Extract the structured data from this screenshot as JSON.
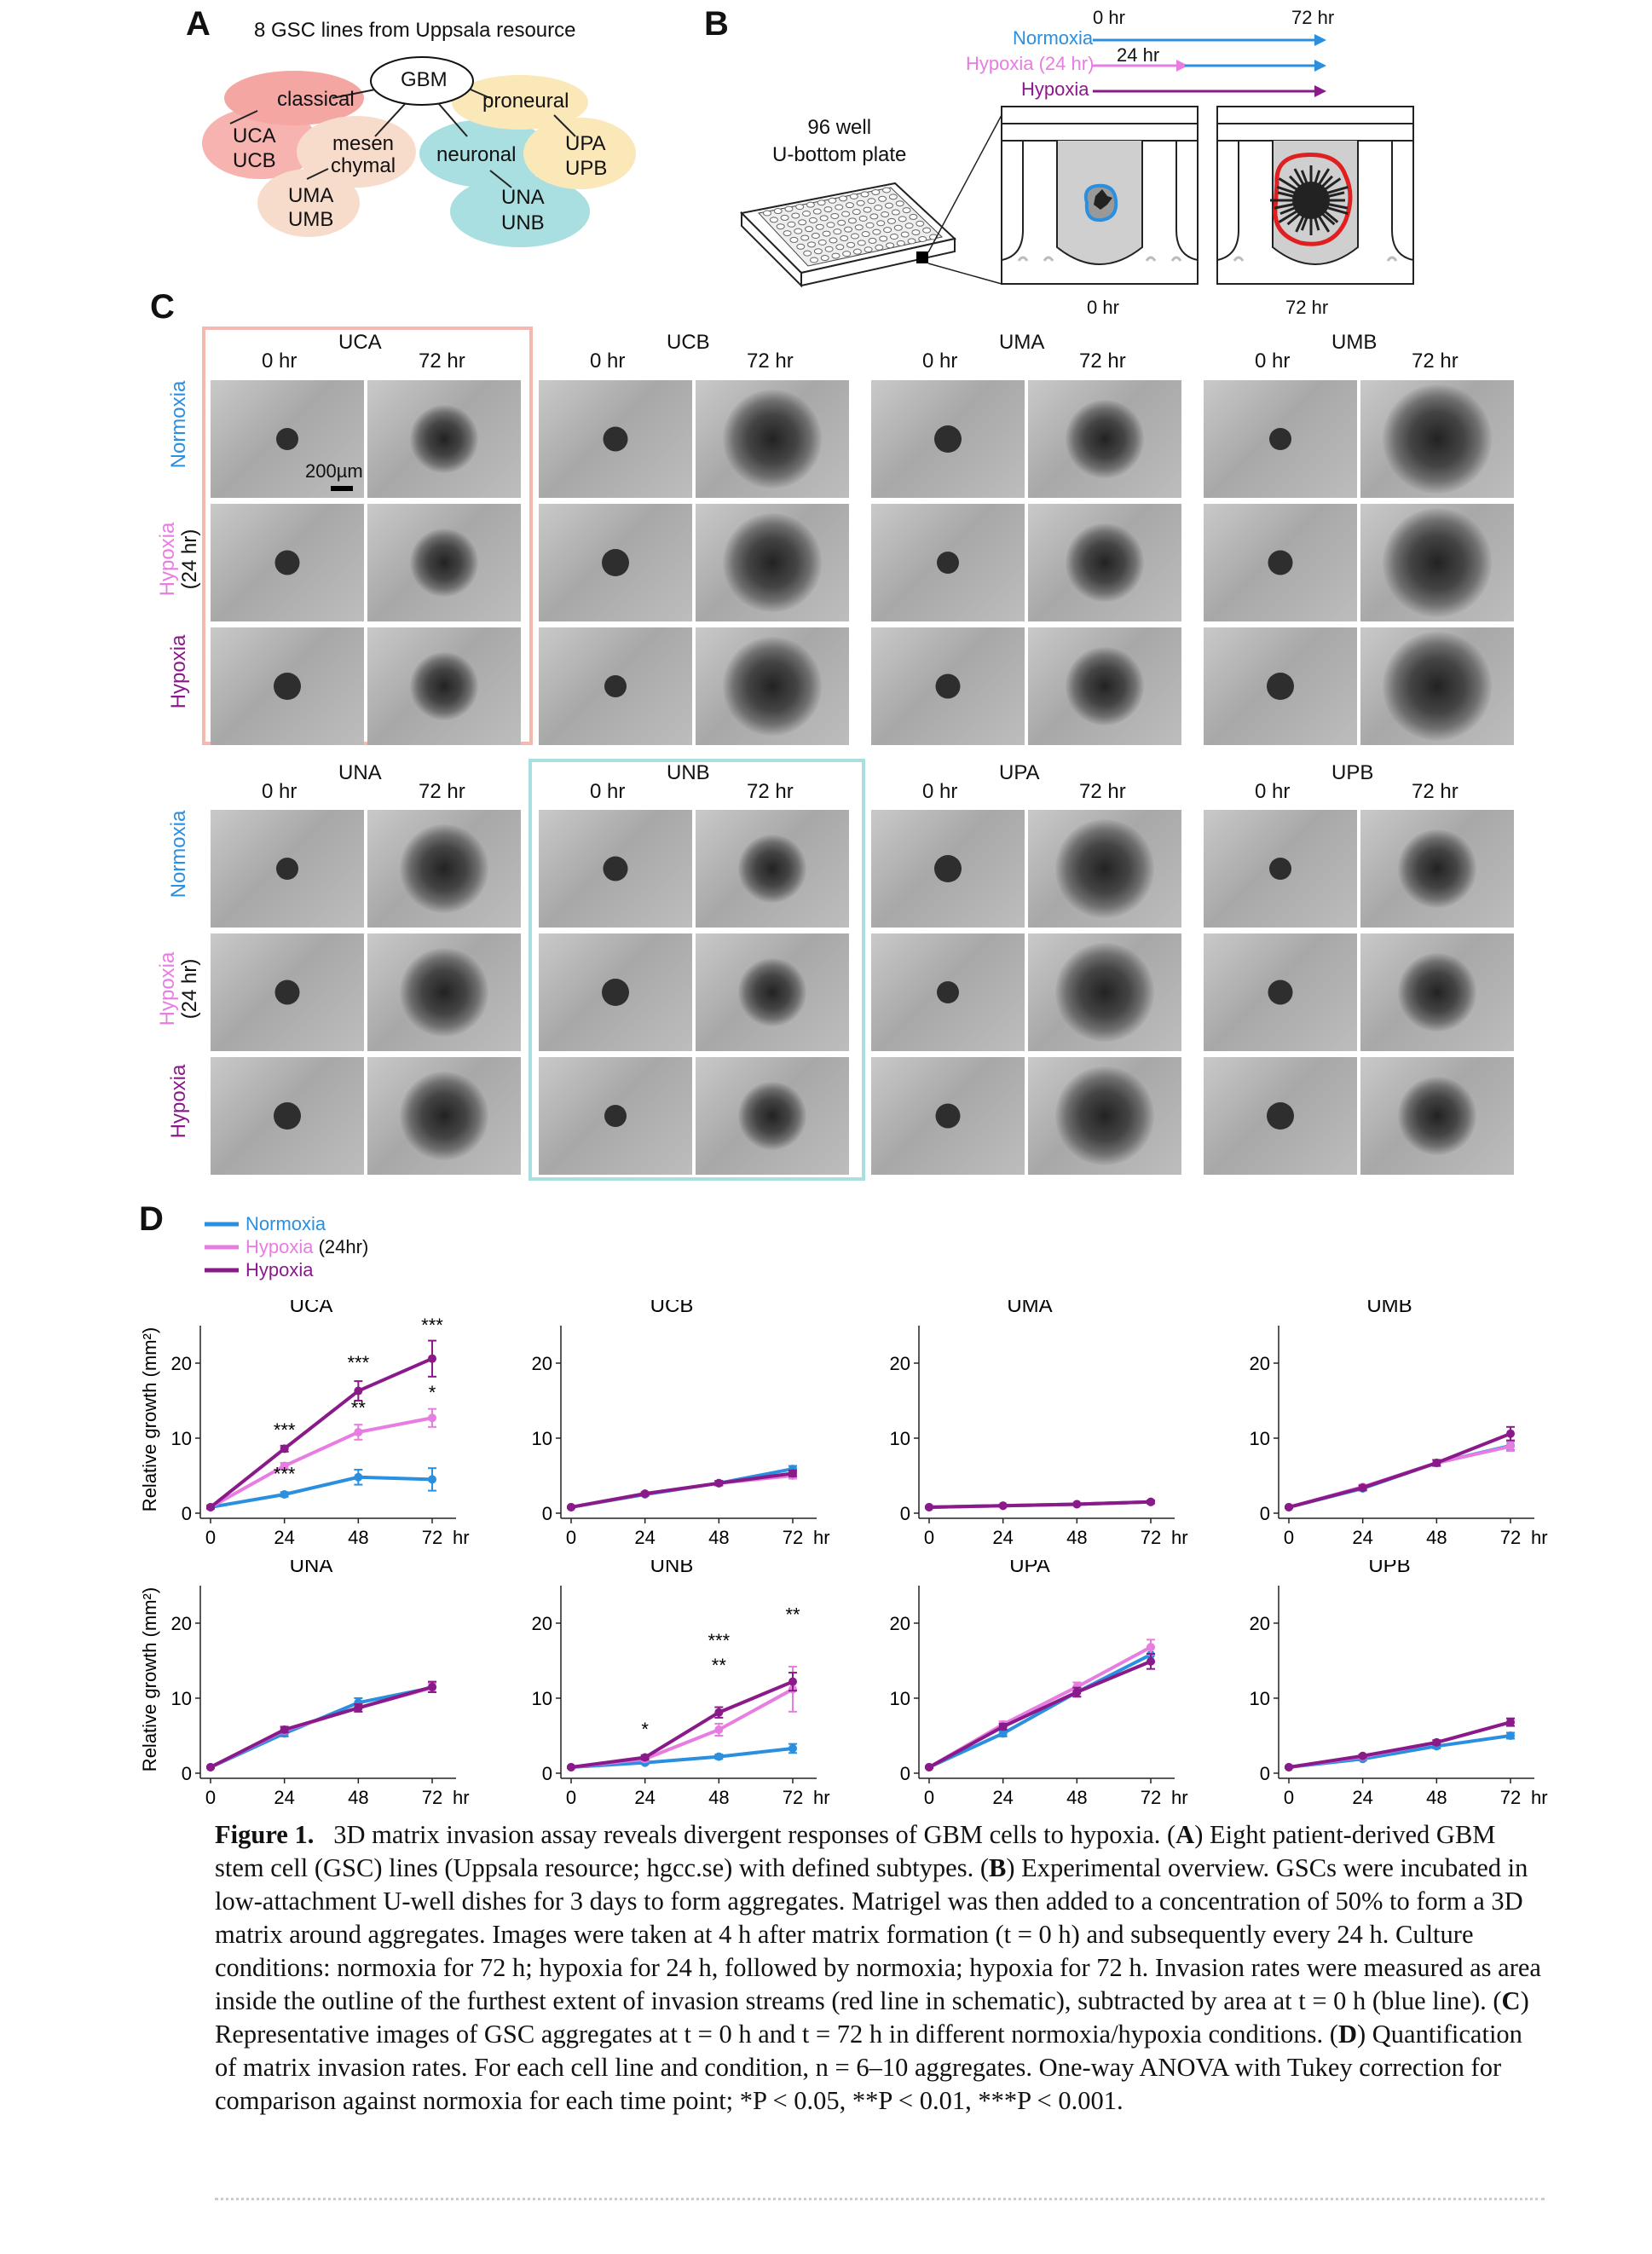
{
  "panelA": {
    "letter": "A",
    "title": "8 GSC lines from Uppsala resource",
    "root": "GBM",
    "subtypes": [
      {
        "name": "classical",
        "color": "#f4a6a2",
        "lines": [
          "UCA",
          "UCB"
        ]
      },
      {
        "name": "mesen\nchymal",
        "color": "#f8dccb",
        "lines": [
          "UMA",
          "UMB"
        ]
      },
      {
        "name": "neuronal",
        "color": "#a9dfe0",
        "lines": [
          "UNA",
          "UNB"
        ]
      },
      {
        "name": "proneural",
        "color": "#fbe8b8",
        "lines": [
          "UPA",
          "UPB"
        ]
      }
    ]
  },
  "panelB": {
    "letter": "B",
    "plate_label": "96 well\nU-bottom plate",
    "time_start": "0 hr",
    "time_end": "72 hr",
    "time_mid": "24 hr",
    "conditions": [
      {
        "label": "Normoxia",
        "color": "#2b8fe0"
      },
      {
        "label": "Hypoxia (24 hr)",
        "color": "#e77de0"
      },
      {
        "label": "Hypoxia",
        "color": "#8a1a8a"
      }
    ],
    "well_0": "0 hr",
    "well_72": "72 hr"
  },
  "panelC": {
    "letter": "C",
    "col_0": "0 hr",
    "col_72": "72 hr",
    "scale_bar": "200µm",
    "row_labels": [
      "Normoxia",
      "Hypoxia\n(24 hr)",
      "Hypoxia"
    ],
    "groups_top": [
      "UCA",
      "UCB",
      "UMA",
      "UMB"
    ],
    "groups_bottom": [
      "UNA",
      "UNB",
      "UPA",
      "UPB"
    ]
  },
  "panelD": {
    "letter": "D",
    "legend": [
      "Normoxia",
      "Hypoxia",
      "(24hr)",
      "Hypoxia"
    ],
    "ylabel": "Relative growth (mm²)",
    "x_unit": "hr"
  },
  "chart_data": [
    {
      "type": "line",
      "title": "UCA",
      "x": [
        0,
        24,
        48,
        72
      ],
      "ylim": [
        0,
        25
      ],
      "yticks": [
        0,
        10,
        20
      ],
      "series": [
        {
          "name": "Normoxia",
          "color": "#2b8fe0",
          "values": [
            0.8,
            2.5,
            4.8,
            4.5
          ],
          "err": [
            0.2,
            0.3,
            1.0,
            1.5
          ]
        },
        {
          "name": "Hypoxia (24hr)",
          "color": "#e77de0",
          "values": [
            0.8,
            6.3,
            10.8,
            12.7
          ],
          "err": [
            0.2,
            0.4,
            1.0,
            1.2
          ]
        },
        {
          "name": "Hypoxia",
          "color": "#8a1a8a",
          "values": [
            0.8,
            8.6,
            16.3,
            20.6
          ],
          "err": [
            0.2,
            0.4,
            1.3,
            2.4
          ]
        }
      ],
      "annotations": [
        "***",
        "***",
        "***",
        "**",
        "***",
        "*"
      ]
    },
    {
      "type": "line",
      "title": "UCB",
      "x": [
        0,
        24,
        48,
        72
      ],
      "ylim": [
        0,
        25
      ],
      "yticks": [
        0,
        10,
        20
      ],
      "series": [
        {
          "name": "Normoxia",
          "color": "#2b8fe0",
          "values": [
            0.8,
            2.5,
            4.0,
            5.9
          ],
          "err": [
            0.1,
            0.2,
            0.3,
            0.4
          ]
        },
        {
          "name": "Hypoxia (24hr)",
          "color": "#e77de0",
          "values": [
            0.8,
            2.6,
            4.0,
            5.0
          ],
          "err": [
            0.1,
            0.2,
            0.3,
            0.4
          ]
        },
        {
          "name": "Hypoxia",
          "color": "#8a1a8a",
          "values": [
            0.8,
            2.6,
            4.0,
            5.3
          ],
          "err": [
            0.1,
            0.2,
            0.3,
            0.4
          ]
        }
      ]
    },
    {
      "type": "line",
      "title": "UMA",
      "x": [
        0,
        24,
        48,
        72
      ],
      "ylim": [
        0,
        25
      ],
      "yticks": [
        0,
        10,
        20
      ],
      "series": [
        {
          "name": "Normoxia",
          "color": "#2b8fe0",
          "values": [
            0.8,
            1.0,
            1.2,
            1.5
          ],
          "err": [
            0.1,
            0.1,
            0.1,
            0.2
          ]
        },
        {
          "name": "Hypoxia (24hr)",
          "color": "#e77de0",
          "values": [
            0.8,
            1.0,
            1.2,
            1.5
          ],
          "err": [
            0.1,
            0.1,
            0.1,
            0.2
          ]
        },
        {
          "name": "Hypoxia",
          "color": "#8a1a8a",
          "values": [
            0.8,
            1.0,
            1.2,
            1.5
          ],
          "err": [
            0.1,
            0.1,
            0.1,
            0.2
          ]
        }
      ]
    },
    {
      "type": "line",
      "title": "UMB",
      "x": [
        0,
        24,
        48,
        72
      ],
      "ylim": [
        0,
        25
      ],
      "yticks": [
        0,
        10,
        20
      ],
      "series": [
        {
          "name": "Normoxia",
          "color": "#2b8fe0",
          "values": [
            0.8,
            3.3,
            6.7,
            9.0
          ],
          "err": [
            0.1,
            0.3,
            0.4,
            0.6
          ]
        },
        {
          "name": "Hypoxia (24hr)",
          "color": "#e77de0",
          "values": [
            0.8,
            3.5,
            6.7,
            8.9
          ],
          "err": [
            0.1,
            0.3,
            0.4,
            0.6
          ]
        },
        {
          "name": "Hypoxia",
          "color": "#8a1a8a",
          "values": [
            0.8,
            3.4,
            6.7,
            10.6
          ],
          "err": [
            0.1,
            0.3,
            0.4,
            0.9
          ]
        }
      ]
    },
    {
      "type": "line",
      "title": "UNA",
      "x": [
        0,
        24,
        48,
        72
      ],
      "ylim": [
        0,
        25
      ],
      "yticks": [
        0,
        10,
        20
      ],
      "series": [
        {
          "name": "Normoxia",
          "color": "#2b8fe0",
          "values": [
            0.8,
            5.3,
            9.4,
            11.4
          ],
          "err": [
            0.1,
            0.4,
            0.6,
            0.6
          ]
        },
        {
          "name": "Hypoxia (24hr)",
          "color": "#e77de0",
          "values": [
            0.8,
            5.7,
            8.7,
            11.4
          ],
          "err": [
            0.1,
            0.4,
            0.5,
            0.6
          ]
        },
        {
          "name": "Hypoxia",
          "color": "#8a1a8a",
          "values": [
            0.8,
            5.8,
            8.7,
            11.5
          ],
          "err": [
            0.1,
            0.4,
            0.5,
            0.7
          ]
        }
      ]
    },
    {
      "type": "line",
      "title": "UNB",
      "x": [
        0,
        24,
        48,
        72
      ],
      "ylim": [
        0,
        25
      ],
      "yticks": [
        0,
        10,
        20
      ],
      "series": [
        {
          "name": "Normoxia",
          "color": "#2b8fe0",
          "values": [
            0.8,
            1.4,
            2.2,
            3.3
          ],
          "err": [
            0.1,
            0.2,
            0.3,
            0.6
          ]
        },
        {
          "name": "Hypoxia (24hr)",
          "color": "#e77de0",
          "values": [
            0.8,
            1.9,
            5.8,
            11.2
          ],
          "err": [
            0.1,
            0.3,
            0.8,
            3.0
          ]
        },
        {
          "name": "Hypoxia",
          "color": "#8a1a8a",
          "values": [
            0.8,
            2.1,
            8.1,
            12.2
          ],
          "err": [
            0.1,
            0.3,
            0.7,
            1.2
          ]
        }
      ],
      "annotations": [
        "*",
        "**",
        "***",
        "**"
      ]
    },
    {
      "type": "line",
      "title": "UPA",
      "x": [
        0,
        24,
        48,
        72
      ],
      "ylim": [
        0,
        25
      ],
      "yticks": [
        0,
        10,
        20
      ],
      "series": [
        {
          "name": "Normoxia",
          "color": "#2b8fe0",
          "values": [
            0.8,
            5.3,
            10.8,
            15.8
          ],
          "err": [
            0.1,
            0.4,
            0.6,
            1.0
          ]
        },
        {
          "name": "Hypoxia (24hr)",
          "color": "#e77de0",
          "values": [
            0.8,
            6.5,
            11.5,
            16.8
          ],
          "err": [
            0.1,
            0.4,
            0.6,
            1.0
          ]
        },
        {
          "name": "Hypoxia",
          "color": "#8a1a8a",
          "values": [
            0.8,
            6.2,
            10.8,
            14.9
          ],
          "err": [
            0.1,
            0.4,
            0.6,
            1.0
          ]
        }
      ]
    },
    {
      "type": "line",
      "title": "UPB",
      "x": [
        0,
        24,
        48,
        72
      ],
      "ylim": [
        0,
        25
      ],
      "yticks": [
        0,
        10,
        20
      ],
      "series": [
        {
          "name": "Normoxia",
          "color": "#2b8fe0",
          "values": [
            0.8,
            1.9,
            3.6,
            5.0
          ],
          "err": [
            0.1,
            0.2,
            0.3,
            0.4
          ]
        },
        {
          "name": "Hypoxia (24hr)",
          "color": "#e77de0",
          "values": [
            0.8,
            2.2,
            4.1,
            6.8
          ],
          "err": [
            0.1,
            0.2,
            0.3,
            0.5
          ]
        },
        {
          "name": "Hypoxia",
          "color": "#8a1a8a",
          "values": [
            0.8,
            2.3,
            4.1,
            6.8
          ],
          "err": [
            0.1,
            0.2,
            0.3,
            0.5
          ]
        }
      ]
    }
  ],
  "caption": {
    "label": "Figure 1.",
    "text1": "3D matrix invasion assay reveals divergent responses of GBM cells to hypoxia. (",
    "A": "A",
    "text2": ") Eight patient-derived GBM stem cell (GSC) lines (Uppsala resource; hgcc.se) with defined subtypes. (",
    "B": "B",
    "text3": ") Experimental overview. GSCs were incubated in low-attachment U-well dishes for 3 days to form aggregates. Matrigel was then added to a concentration of 50% to form a 3D matrix around aggregates. Images were taken at 4 h after matrix formation (t = 0 h) and subsequently every 24 h. Culture conditions: normoxia for 72 h; hypoxia for 24 h, followed by normoxia; hypoxia for 72 h. Invasion rates were measured as area inside the outline of the furthest extent of invasion streams (red line in schematic), subtracted by area at t = 0 h (blue line). (",
    "C": "C",
    "text4": ") Representative images of GSC aggregates at t = 0 h and t = 72 h in different normoxia/hypoxia conditions. (",
    "D": "D",
    "text5": ") Quantification of matrix invasion rates. For each cell line and condition, n = 6–10 aggregates. One-way ANOVA with Tukey correction for comparison against normoxia for each time point; *P < 0.05, **P < 0.01, ***P < 0.001."
  }
}
